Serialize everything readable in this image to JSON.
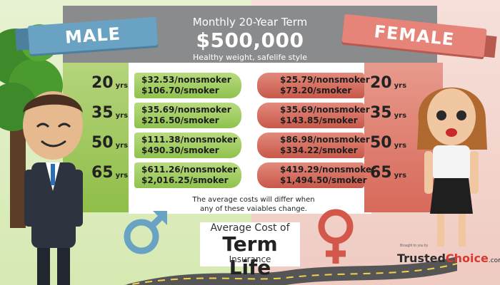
{
  "header": {
    "title": "Monthly 20-Year Term",
    "amount": "$500,000",
    "subtitle": "Healthy weight, safelife style"
  },
  "labels": {
    "male": "MALE",
    "female": "FEMALE"
  },
  "ages": [
    {
      "age": "20",
      "unit": "yrs"
    },
    {
      "age": "35",
      "unit": "yrs"
    },
    {
      "age": "50",
      "unit": "yrs"
    },
    {
      "age": "65",
      "unit": "yrs"
    }
  ],
  "male_rates": [
    {
      "nonsmoker": "$32.53/nonsmoker",
      "smoker": "$106.70/smoker"
    },
    {
      "nonsmoker": "$35.69/nonsmoker",
      "smoker": "$216.50/smoker"
    },
    {
      "nonsmoker": "$111.38/nonsmoker",
      "smoker": "$490.30/smoker"
    },
    {
      "nonsmoker": "$611.26/nonsmoker",
      "smoker": "$2,016.25/smoker"
    }
  ],
  "female_rates": [
    {
      "nonsmoker": "$25.79/nonsmoker",
      "smoker": "$73.20/smoker"
    },
    {
      "nonsmoker": "$35.69/nonsmoker",
      "smoker": "$143.85/smoker"
    },
    {
      "nonsmoker": "$86.98/nonsmoker",
      "smoker": "$334.22/smoker"
    },
    {
      "nonsmoker": "$419.29/nonsmoker",
      "smoker": "$1,494.50/smoker"
    }
  ],
  "note": {
    "line1": "The average costs will differ when",
    "line2": "any of these vaiables change."
  },
  "title": {
    "line1": "Average Cost of",
    "line2": "Term Life",
    "line3": "Insurance"
  },
  "logo": {
    "tiny": "Brought to you by",
    "trusted": "Trusted",
    "choice": "Choice",
    "domain": ".com"
  },
  "colors": {
    "male_accent": "#6aa2c4",
    "female_accent": "#e6847a",
    "green": "#96c254",
    "red": "#d7695a",
    "header": "#8a8b8d"
  },
  "icons": [
    "tree-icon",
    "male-symbol-icon",
    "female-symbol-icon",
    "man-character-icon",
    "woman-character-icon",
    "road-icon"
  ]
}
